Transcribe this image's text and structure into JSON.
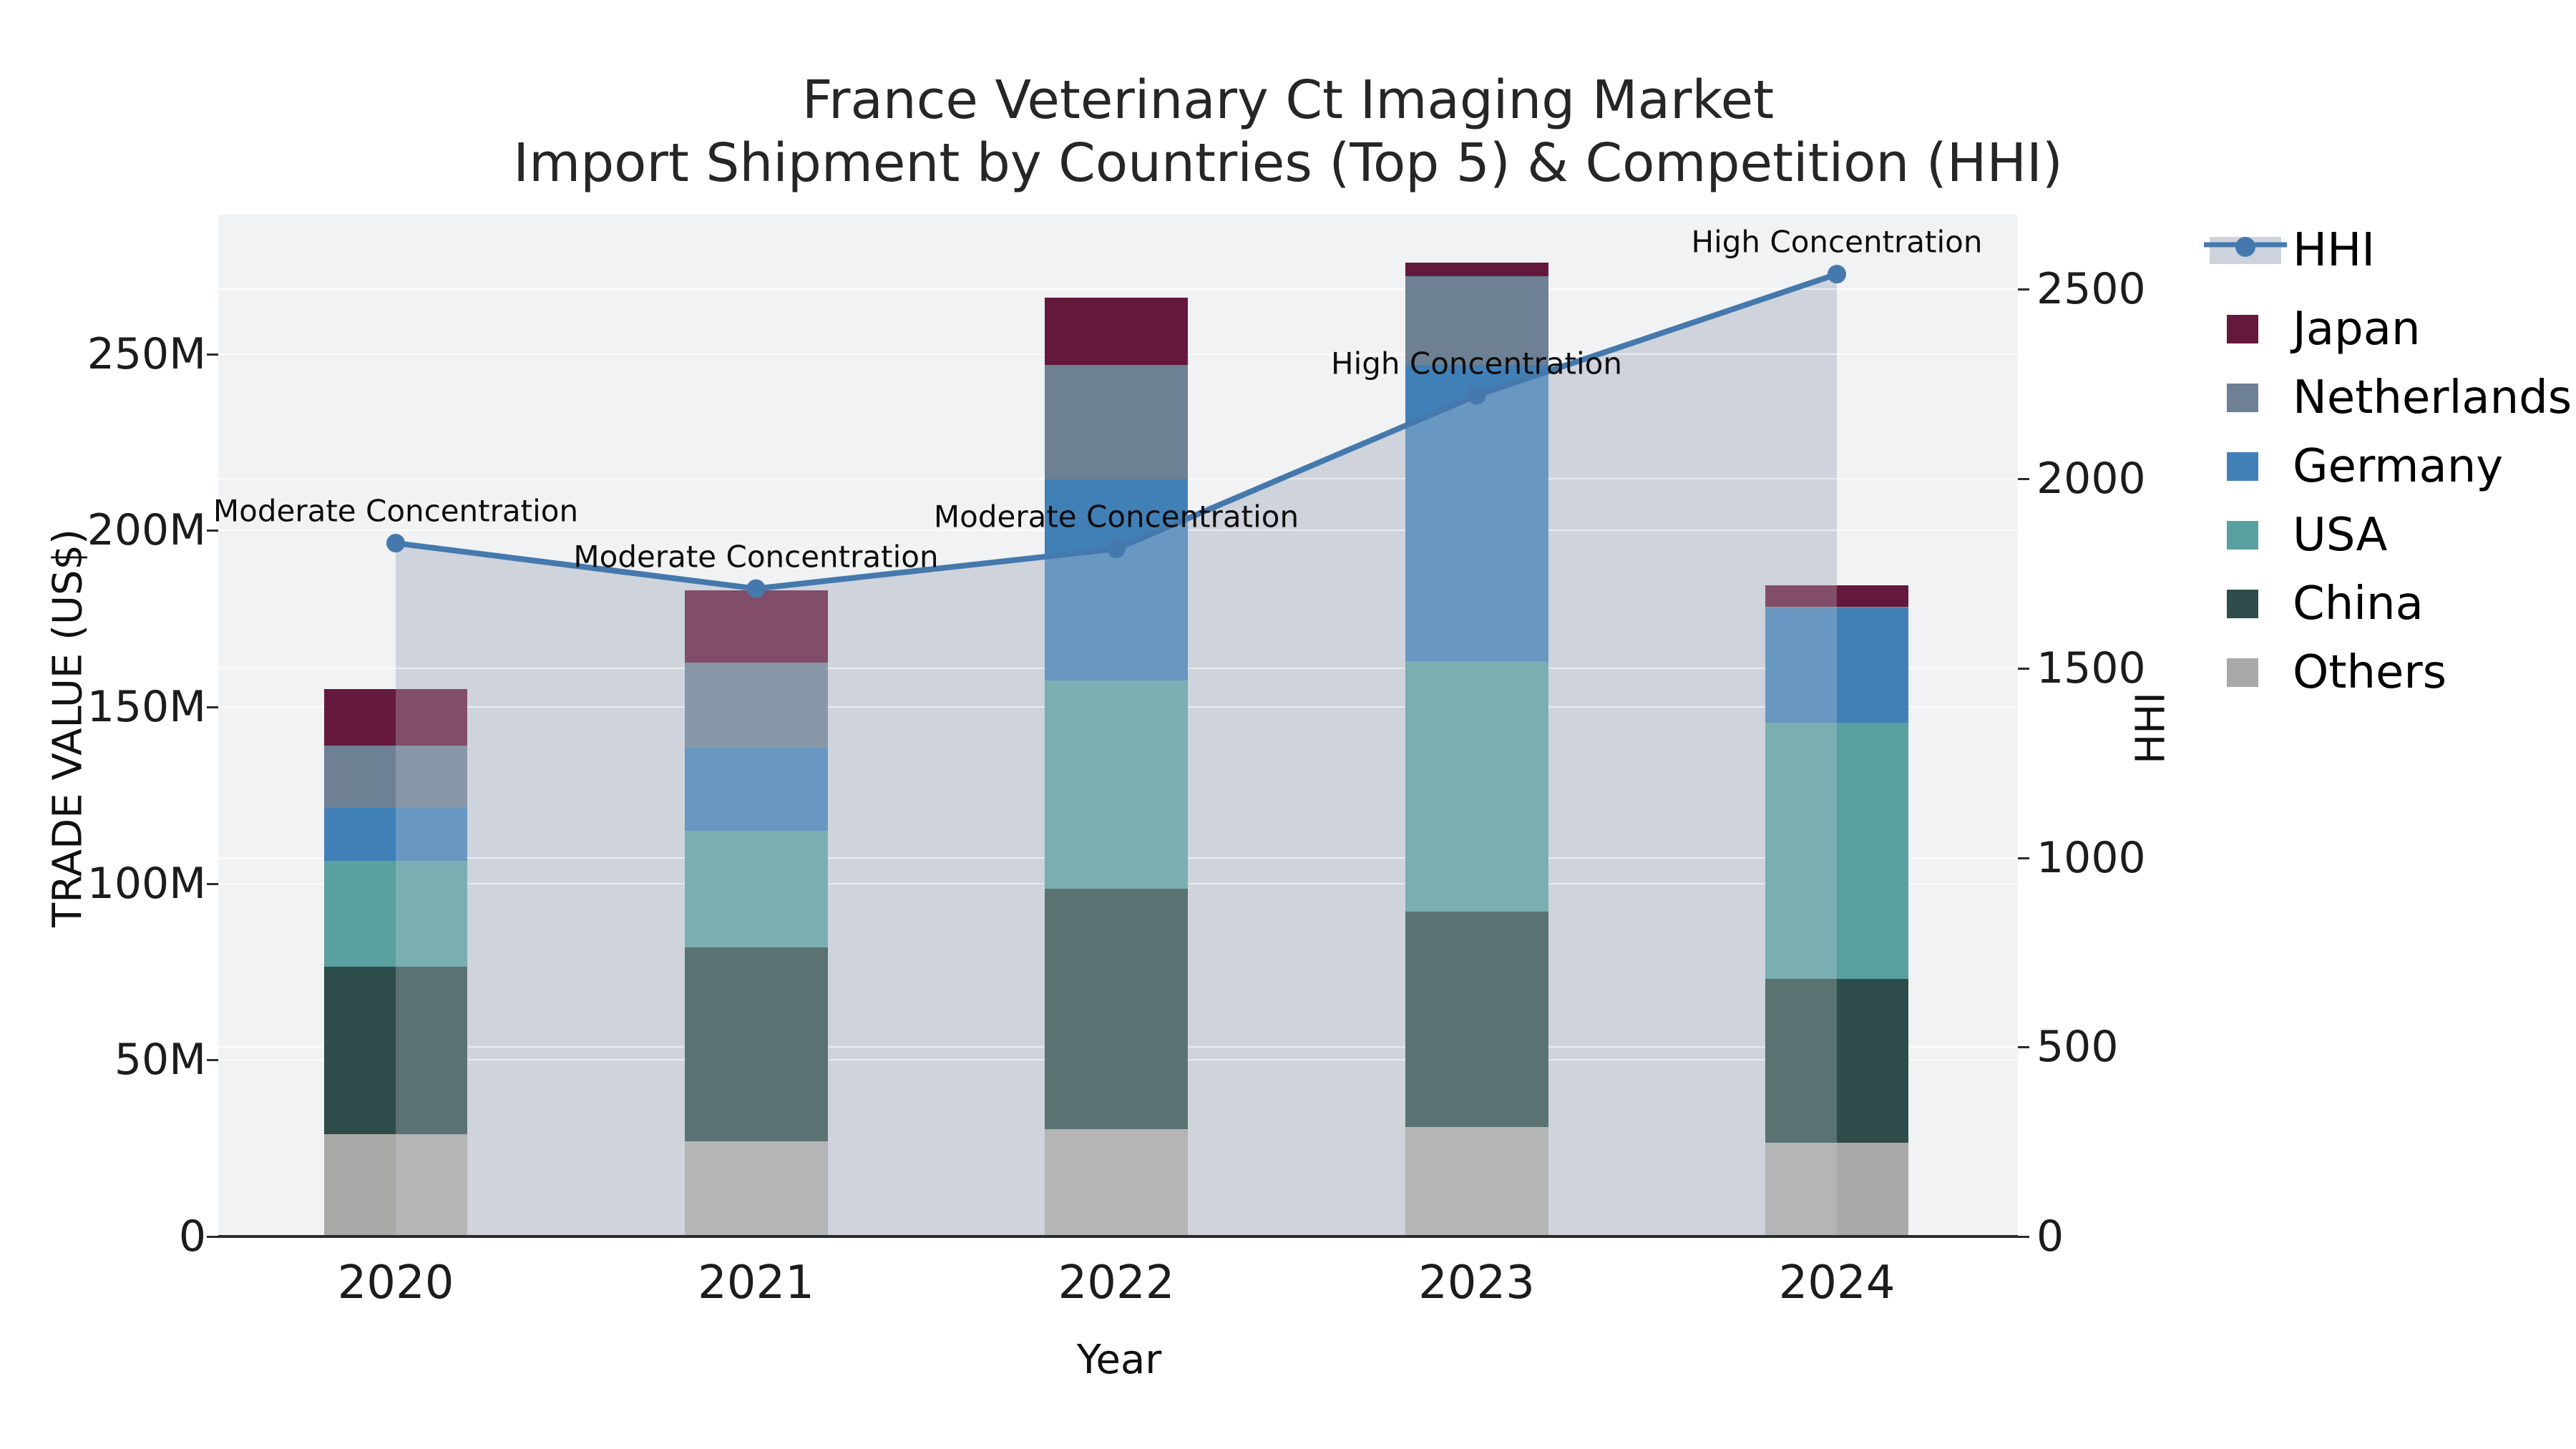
{
  "chart_data": {
    "type": "bar",
    "subtype": "stacked_bar_with_secondary_line_and_area_fill",
    "title_line1": "France Veterinary Ct Imaging Market",
    "title_line2": "Import Shipment by Countries (Top 5) & Competition (HHI)",
    "xlabel": "Year",
    "ylabel_left": "TRADE VALUE (US$)",
    "ylabel_right": "HHI",
    "categories": [
      "2020",
      "2021",
      "2022",
      "2023",
      "2024"
    ],
    "value_unit_left": "million US$",
    "stack_order_bottom_to_top": [
      "Others",
      "China",
      "USA",
      "Germany",
      "Netherlands",
      "Japan"
    ],
    "series": [
      {
        "name": "Others",
        "values_musd": [
          29,
          27,
          30.5,
          31,
          26.5
        ],
        "color": "#a9a9a7"
      },
      {
        "name": "China",
        "values_musd": [
          47.5,
          55,
          68,
          61,
          46.5
        ],
        "color": "#2e4d4a"
      },
      {
        "name": "USA",
        "values_musd": [
          30,
          33,
          59,
          71,
          72.5
        ],
        "color": "#58a1a0"
      },
      {
        "name": "Germany",
        "values_musd": [
          15,
          23.5,
          57,
          84,
          32.5
        ],
        "color": "#4180b7"
      },
      {
        "name": "Netherlands",
        "values_musd": [
          17.5,
          24,
          32.5,
          25,
          0.5
        ],
        "color": "#6d8094"
      },
      {
        "name": "Japan",
        "values_musd": [
          16,
          20.5,
          19,
          4,
          6
        ],
        "color": "#64193c"
      }
    ],
    "line_series": {
      "name": "HHI",
      "axis": "right",
      "values": [
        1830,
        1710,
        1815,
        2220,
        2540
      ],
      "color": "#4579ad",
      "marker": "circle",
      "area_fill": true,
      "area_fill_color": "#cdd3dc"
    },
    "annotations": [
      {
        "year": "2020",
        "text": "Moderate Concentration"
      },
      {
        "year": "2021",
        "text": "Moderate Concentration"
      },
      {
        "year": "2022",
        "text": "Moderate Concentration"
      },
      {
        "year": "2023",
        "text": "High Concentration"
      },
      {
        "year": "2024",
        "text": "High Concentration"
      }
    ],
    "left_axis_ticks": [
      {
        "label": "0",
        "value": 0
      },
      {
        "label": "50M",
        "value": 50
      },
      {
        "label": "100M",
        "value": 100
      },
      {
        "label": "150M",
        "value": 150
      },
      {
        "label": "200M",
        "value": 200
      },
      {
        "label": "250M",
        "value": 250
      }
    ],
    "right_axis_ticks": [
      {
        "label": "0",
        "value": 0
      },
      {
        "label": "500",
        "value": 500
      },
      {
        "label": "1000",
        "value": 1000
      },
      {
        "label": "1500",
        "value": 1500
      },
      {
        "label": "2000",
        "value": 2000
      },
      {
        "label": "2500",
        "value": 2500
      }
    ],
    "ylim_left_musd": [
      0,
      289.5
    ],
    "ylim_right": [
      0,
      2697
    ],
    "grid": true,
    "legend_position": "right",
    "legend_order": [
      "HHI",
      "Japan",
      "Netherlands",
      "Germany",
      "USA",
      "China",
      "Others"
    ],
    "totals_musd": {
      "2020": 155,
      "2021": 183,
      "2022": 266,
      "2023": 276,
      "2024": 184.5
    }
  },
  "style_colors": {
    "figure_bg": "#ffffff",
    "plot_bg": "#f1f2f3",
    "axis_line": "#2b2b2b",
    "hhi_line": "#4579ad",
    "hhi_area_fill": "#cdd3dc",
    "bar_mute_overlay": "rgba(207,213,222,0.28)"
  }
}
